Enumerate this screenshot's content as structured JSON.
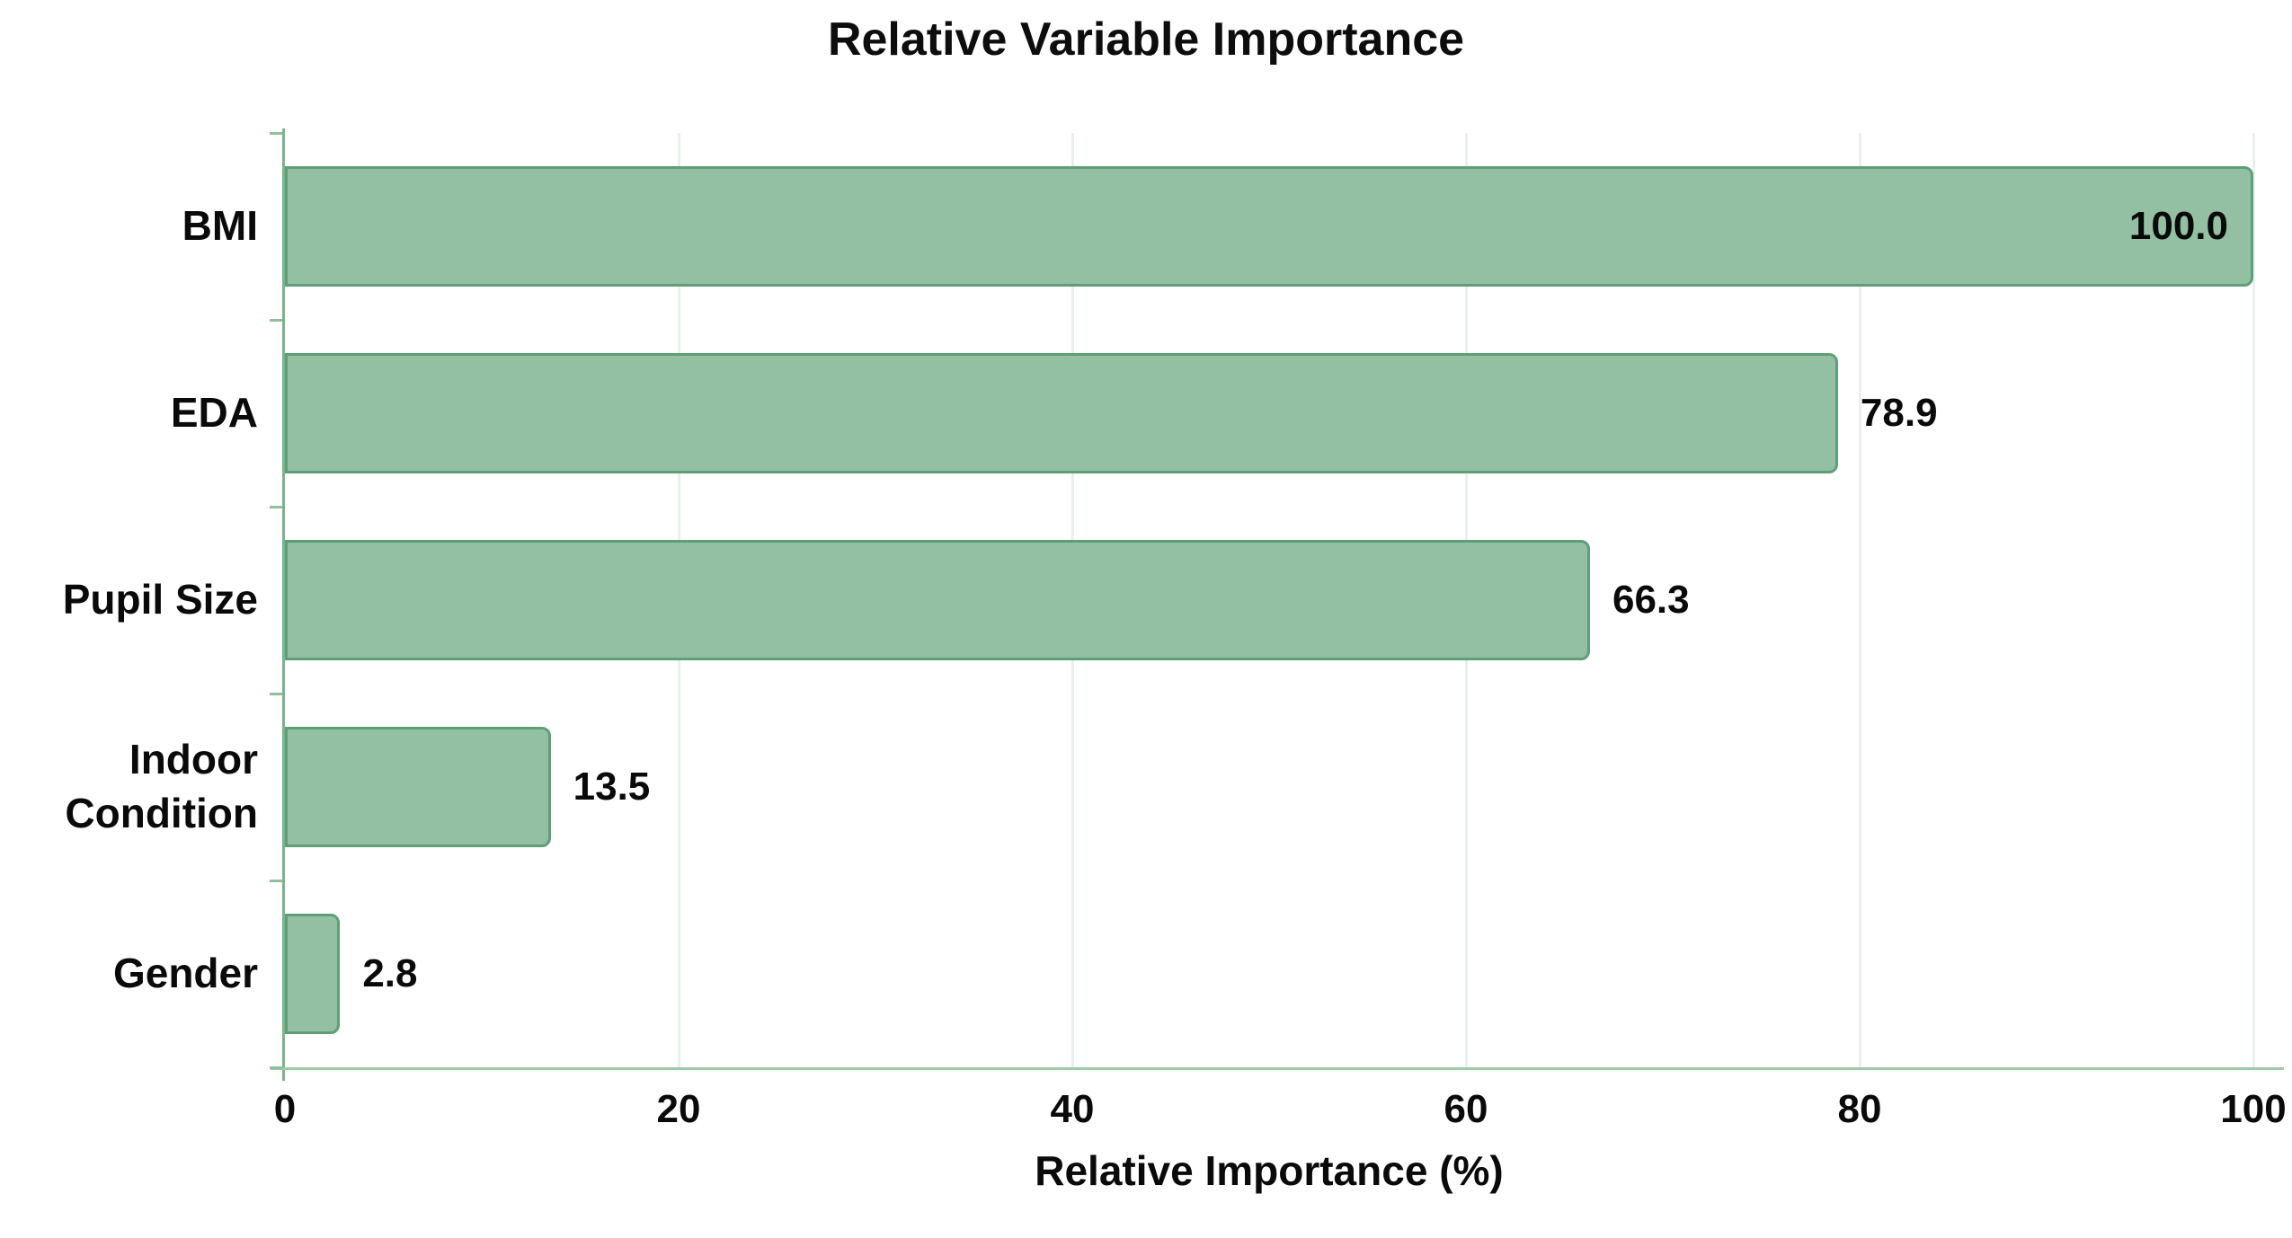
{
  "title": "Relative Variable Importance",
  "chart_data": {
    "type": "bar",
    "orientation": "horizontal",
    "title": "Relative Variable Importance",
    "xlabel": "Relative Importance (%)",
    "ylabel": "",
    "categories": [
      "BMI",
      "EDA",
      "Pupil Size",
      "Indoor Condition",
      "Gender"
    ],
    "values": [
      100.0,
      78.9,
      66.3,
      13.5,
      2.8
    ],
    "value_labels": [
      "100.0",
      "78.9",
      "66.3",
      "13.5",
      "2.8"
    ],
    "xlim": [
      0,
      100
    ],
    "x_ticks": [
      0,
      20,
      40,
      60,
      80,
      100
    ],
    "x_tick_labels": [
      "0",
      "20",
      "40",
      "60",
      "80",
      "100"
    ],
    "grid": "vertical",
    "legend": "none",
    "colors": {
      "bar_fill": "#93c0a3",
      "bar_border": "#5f9e77",
      "y_axis": "#7cb38d",
      "x_axis": "#9acaa6",
      "gridline": "#eaf0ea",
      "text": "#0a0a0a"
    }
  }
}
